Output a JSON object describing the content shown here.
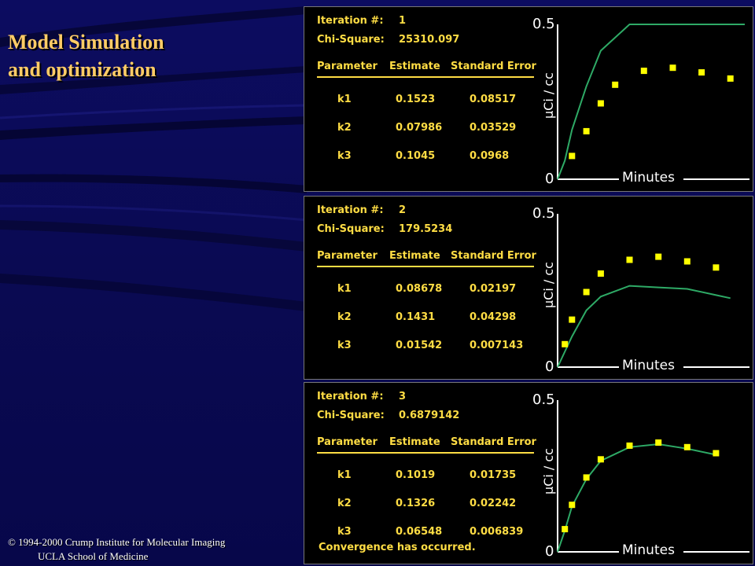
{
  "slide": {
    "title_line1": "Model Simulation",
    "title_line2": "and optimization",
    "credit_line1": "© 1994-2000 Crump Institute for Molecular Imaging",
    "credit_line2": "UCLA School of Medicine"
  },
  "colors": {
    "background": "#0a0a5a",
    "title": "#ffcc66",
    "panel_text": "#ffdd44",
    "curve": "#2eaa66",
    "points": "#ffff00"
  },
  "panels": [
    {
      "iteration_label": "Iteration #:",
      "iteration": "1",
      "chi_label": "Chi-Square:",
      "chi": "25310.097",
      "headers": [
        "Parameter",
        "Estimate",
        "Standard Error"
      ],
      "rows": [
        [
          "k1",
          "0.1523",
          "0.08517"
        ],
        [
          "k2",
          "0.07986",
          "0.03529"
        ],
        [
          "k3",
          "0.1045",
          "0.0968"
        ]
      ],
      "note": ""
    },
    {
      "iteration_label": "Iteration #:",
      "iteration": "2",
      "chi_label": "Chi-Square:",
      "chi": "179.5234",
      "headers": [
        "Parameter",
        "Estimate",
        "Standard Error"
      ],
      "rows": [
        [
          "k1",
          "0.08678",
          "0.02197"
        ],
        [
          "k2",
          "0.1431",
          "0.04298"
        ],
        [
          "k3",
          "0.01542",
          "0.007143"
        ]
      ],
      "note": ""
    },
    {
      "iteration_label": "Iteration #:",
      "iteration": "3",
      "chi_label": "Chi-Square:",
      "chi": "0.6879142",
      "headers": [
        "Parameter",
        "Estimate",
        "Standard Error"
      ],
      "rows": [
        [
          "k1",
          "0.1019",
          "0.01735"
        ],
        [
          "k2",
          "0.1326",
          "0.02242"
        ],
        [
          "k3",
          "0.06548",
          "0.006839"
        ]
      ],
      "note": "Convergence has occurred."
    }
  ],
  "chart_data": [
    {
      "type": "scatter+line",
      "xlabel": "Minutes",
      "ylabel": "µCi / cc",
      "ylim": [
        0,
        0.5
      ],
      "y_ticks": [
        "0",
        "0.5"
      ],
      "points": [
        [
          1,
          0.075
        ],
        [
          2,
          0.155
        ],
        [
          3,
          0.245
        ],
        [
          4,
          0.305
        ],
        [
          6,
          0.35
        ],
        [
          8,
          0.36
        ],
        [
          10,
          0.345
        ],
        [
          12,
          0.325
        ]
      ],
      "fit": [
        [
          0,
          0
        ],
        [
          0.5,
          0.06
        ],
        [
          1,
          0.16
        ],
        [
          2,
          0.3
        ],
        [
          3,
          0.415
        ],
        [
          5,
          0.5
        ],
        [
          13,
          0.5
        ]
      ]
    },
    {
      "type": "scatter+line",
      "xlabel": "Minutes",
      "ylabel": "µCi / cc",
      "ylim": [
        0,
        0.5
      ],
      "y_ticks": [
        "0",
        "0.5"
      ],
      "points": [
        [
          0.5,
          0.075
        ],
        [
          1,
          0.155
        ],
        [
          2,
          0.245
        ],
        [
          3,
          0.305
        ],
        [
          5,
          0.35
        ],
        [
          7,
          0.36
        ],
        [
          9,
          0.345
        ],
        [
          11,
          0.325
        ]
      ],
      "fit": [
        [
          0,
          0
        ],
        [
          1,
          0.1
        ],
        [
          2,
          0.185
        ],
        [
          3,
          0.23
        ],
        [
          5,
          0.265
        ],
        [
          7,
          0.26
        ],
        [
          9,
          0.255
        ],
        [
          11,
          0.235
        ],
        [
          12,
          0.225
        ]
      ]
    },
    {
      "type": "scatter+line",
      "xlabel": "Minutes",
      "ylabel": "µCi / cc",
      "ylim": [
        0,
        0.5
      ],
      "y_ticks": [
        "0",
        "0.5"
      ],
      "points": [
        [
          0.5,
          0.075
        ],
        [
          1,
          0.155
        ],
        [
          2,
          0.245
        ],
        [
          3,
          0.305
        ],
        [
          5,
          0.35
        ],
        [
          7,
          0.36
        ],
        [
          9,
          0.345
        ],
        [
          11,
          0.325
        ]
      ],
      "fit": [
        [
          0,
          0
        ],
        [
          0.5,
          0.07
        ],
        [
          1,
          0.15
        ],
        [
          2,
          0.24
        ],
        [
          3,
          0.3
        ],
        [
          5,
          0.345
        ],
        [
          7,
          0.355
        ],
        [
          9,
          0.34
        ],
        [
          11,
          0.32
        ]
      ]
    }
  ]
}
